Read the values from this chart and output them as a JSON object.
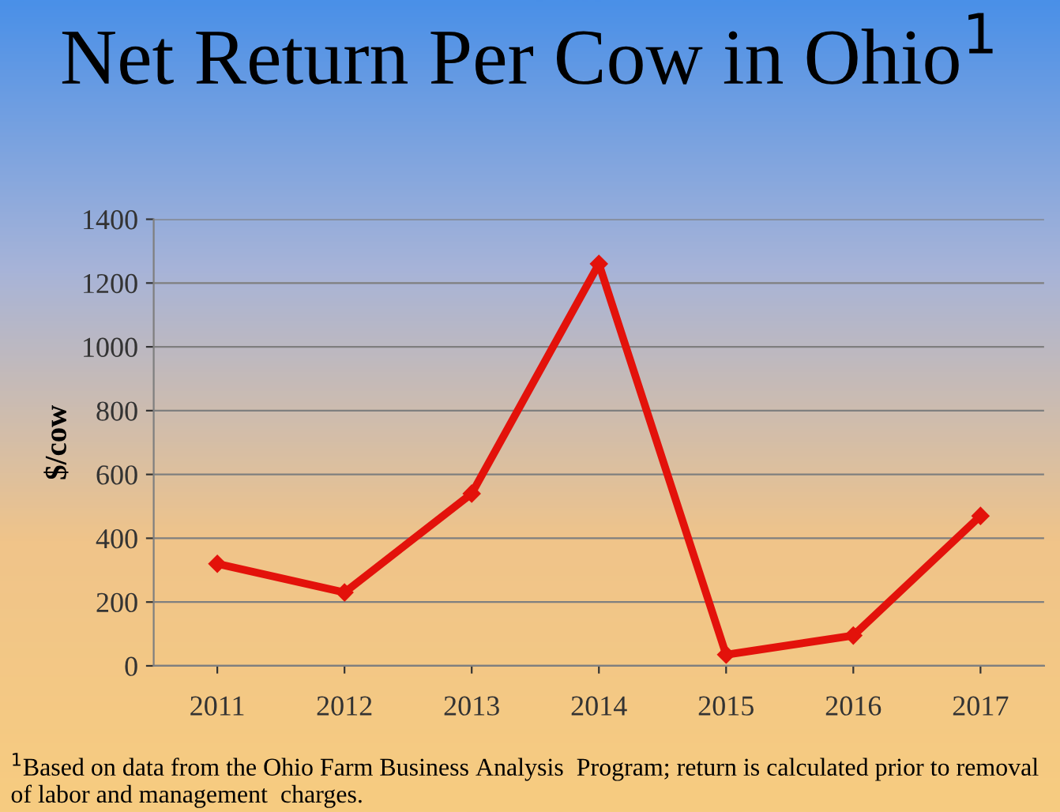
{
  "chart_data": {
    "type": "line",
    "title": "Net Return Per Cow in Ohio$^{1}$",
    "ylabel": "$/cow",
    "categories": [
      "2011",
      "2012",
      "2013",
      "2014",
      "2015",
      "2016",
      "2017"
    ],
    "series": [
      {
        "color": "#e3120b",
        "values": [
          320,
          230,
          540,
          1260,
          35,
          95,
          470
        ]
      }
    ],
    "ylim": [
      0,
      1400
    ],
    "yticks": [
      0,
      200,
      400,
      600,
      800,
      1000,
      1200,
      1400
    ],
    "grid": "y",
    "marker": "diamond",
    "line_style": "solid",
    "annotations": [
      "$^{1}$Based on data from the Ohio Farm Business Analysis  Program; return is calculated prior to removal of labor and management  charges."
    ]
  }
}
